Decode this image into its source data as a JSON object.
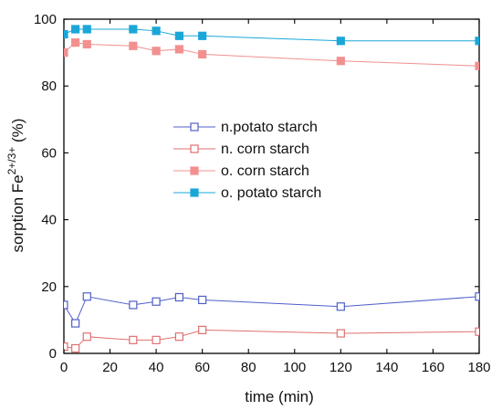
{
  "chart_data": {
    "type": "line",
    "xlabel": "time (min)",
    "ylabel": {
      "base": "sorption Fe",
      "sup": "2+/3+",
      "tail": " (%)"
    },
    "xlim": [
      0,
      180
    ],
    "ylim": [
      0,
      100
    ],
    "xticks": [
      0,
      20,
      40,
      60,
      80,
      100,
      120,
      140,
      160,
      180
    ],
    "yticks": [
      0,
      20,
      40,
      60,
      80,
      100
    ],
    "grid": false,
    "legend_position": "center",
    "series": [
      {
        "name": "n.potato starch",
        "color": "#4f5fc9",
        "marker": "open-square",
        "x": [
          0,
          5,
          10,
          30,
          40,
          50,
          60,
          120,
          180
        ],
        "y": [
          14.5,
          9,
          17,
          14.5,
          15.5,
          16.8,
          16,
          14,
          17
        ]
      },
      {
        "name": "n. corn starch",
        "color": "#e07070",
        "marker": "open-square",
        "x": [
          0,
          5,
          10,
          30,
          40,
          50,
          60,
          120,
          180
        ],
        "y": [
          2,
          1.5,
          5,
          4,
          4,
          5,
          7,
          6,
          6.5
        ]
      },
      {
        "name": "o. corn starch",
        "color": "#f29090",
        "marker": "filled-square",
        "x": [
          0,
          5,
          10,
          30,
          40,
          50,
          60,
          120,
          180
        ],
        "y": [
          90,
          93,
          92.5,
          92,
          90.5,
          91,
          89.5,
          87.5,
          86
        ]
      },
      {
        "name": "o. potato starch",
        "color": "#1aa7d8",
        "marker": "filled-square",
        "x": [
          0,
          5,
          10,
          30,
          40,
          50,
          60,
          120,
          180
        ],
        "y": [
          95.5,
          97,
          97,
          97,
          96.5,
          95,
          95,
          93.5,
          93.5
        ]
      }
    ]
  }
}
